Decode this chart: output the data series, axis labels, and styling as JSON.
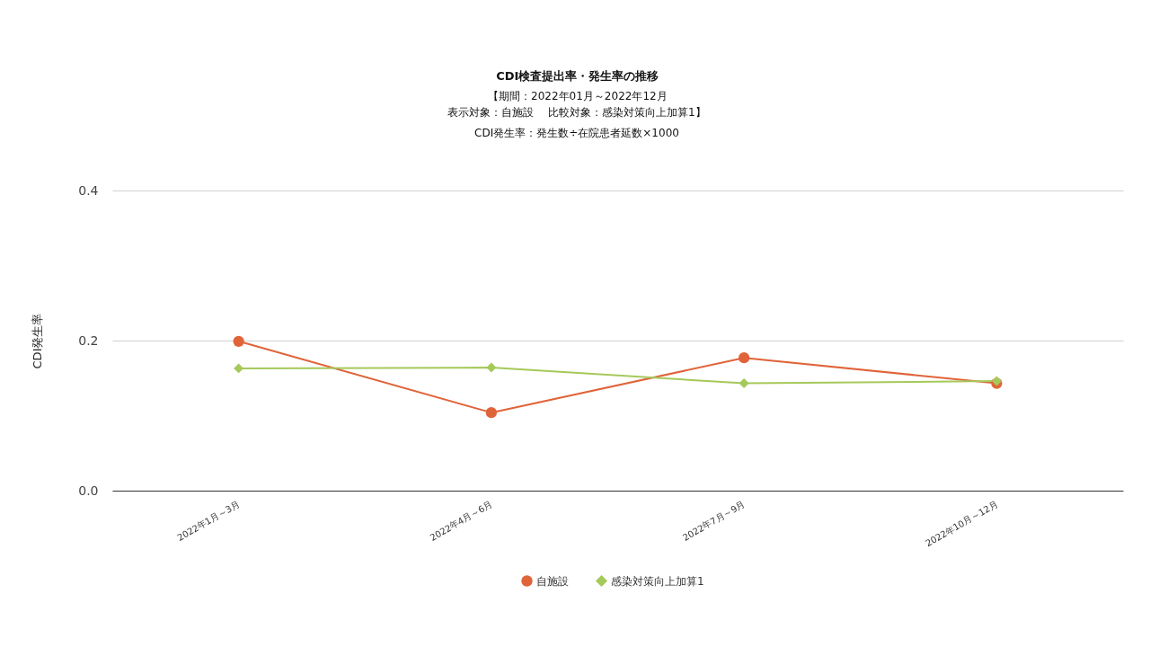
{
  "chart_data": {
    "type": "line",
    "title": "CDI検査提出率・発生率の推移",
    "subtitle": "【期間：2022年01月～2022年12月",
    "annotations": [
      "表示対象：自施設　 比較対象：感染対策向上加算1】",
      "CDI発生率：発生数÷在院患者延数×1000"
    ],
    "ylabel": "CDI発生率",
    "categories": [
      "2022年1月～3月",
      "2022年4月～6月",
      "2022年7月～9月",
      "2022年10月～12月"
    ],
    "series": [
      {
        "name": "自施設",
        "color": "#e0643a",
        "marker": "circle",
        "values": [
          0.199,
          0.104,
          0.177,
          0.143
        ]
      },
      {
        "name": "感染対策向上加算1",
        "color": "#a5c95a",
        "marker": "diamond",
        "values": [
          0.163,
          0.164,
          0.143,
          0.146
        ]
      }
    ],
    "ylim": [
      0,
      0.4
    ],
    "yticks": [
      {
        "value": 0,
        "label": "0.0"
      },
      0.2,
      0.4
    ],
    "grid": "y",
    "legend": "bottom",
    "line_style": "solid"
  }
}
